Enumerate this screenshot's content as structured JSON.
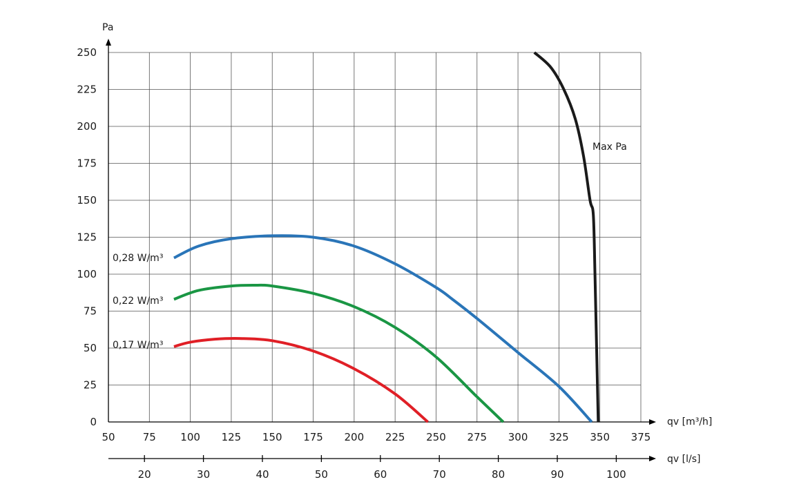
{
  "chart_data": {
    "type": "line",
    "title": "",
    "ylabel": "Pa",
    "xlabel": "qv [m³/h]",
    "xlabel_secondary": "qv [l/s]",
    "xlim": [
      50,
      375
    ],
    "ylim": [
      0,
      250
    ],
    "x_ticks": [
      "50",
      "75",
      "100",
      "125",
      "150",
      "175",
      "200",
      "225",
      "250",
      "275",
      "300",
      "325",
      "350",
      "375"
    ],
    "y_ticks": [
      "0",
      "25",
      "50",
      "75",
      "100",
      "125",
      "150",
      "175",
      "200",
      "225",
      "250"
    ],
    "secondary_ticks": [
      20,
      30,
      40,
      50,
      60,
      70,
      80,
      90,
      100
    ],
    "secondary_tick_labels": [
      "20",
      "30",
      "40",
      "50",
      "60",
      "70",
      "80",
      "90",
      "100"
    ],
    "grid": true,
    "series": [
      {
        "name": "0,28 W/m³",
        "color": "#2a75b8",
        "x": [
          90,
          105,
          125,
          150,
          175,
          200,
          225,
          250,
          260,
          275,
          300,
          325,
          345
        ],
        "y": [
          111,
          119,
          124,
          126,
          125,
          119,
          107,
          91,
          83,
          70,
          47,
          24,
          0
        ]
      },
      {
        "name": "0,22 W/m³",
        "color": "#1a9644",
        "x": [
          90,
          105,
          125,
          140,
          150,
          175,
          200,
          225,
          250,
          275,
          291
        ],
        "y": [
          83,
          89,
          92,
          92.5,
          92,
          87,
          78,
          64,
          44,
          17,
          0
        ]
      },
      {
        "name": "0,17 W/m³",
        "color": "#e01f26",
        "x": [
          90,
          100,
          115,
          130,
          150,
          175,
          200,
          225,
          245
        ],
        "y": [
          51,
          54,
          56,
          56.5,
          55,
          48,
          36,
          19,
          0
        ]
      },
      {
        "name": "Max Pa",
        "color": "#1a1a1a",
        "x": [
          310,
          320,
          328,
          335,
          340,
          344,
          346,
          347,
          348,
          349
        ],
        "y": [
          250,
          240,
          225,
          205,
          180,
          150,
          140,
          100,
          50,
          0
        ]
      }
    ]
  }
}
